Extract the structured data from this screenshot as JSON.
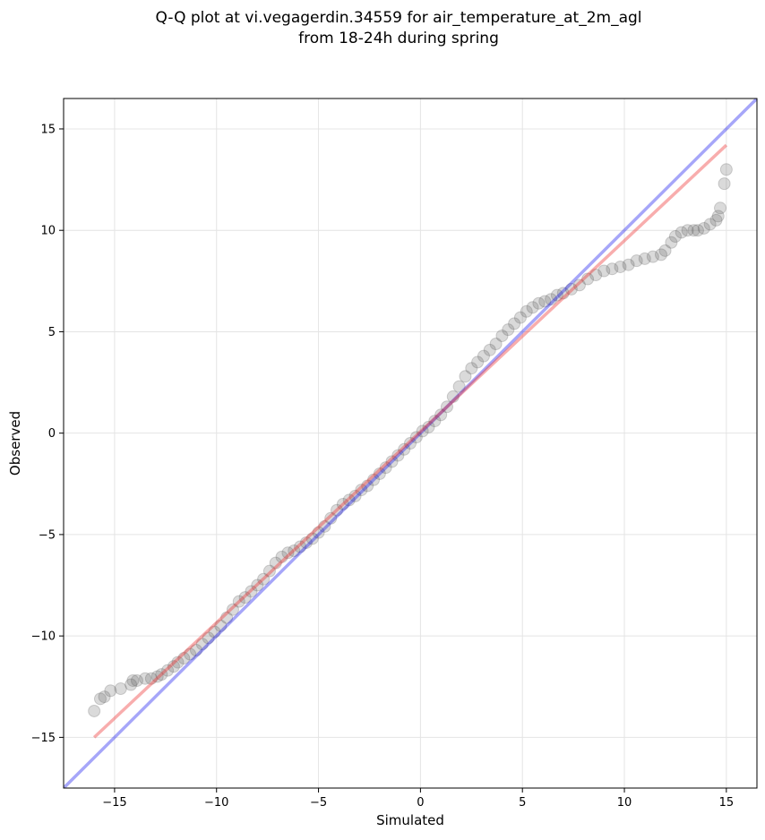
{
  "chart_data": {
    "type": "scatter",
    "title": [
      "Q-Q plot at vi.vegagerdin.34559 for air_temperature_at_2m_agl",
      "from 18-24h during spring"
    ],
    "xlabel": "Simulated",
    "ylabel": "Observed",
    "xlim": [
      -17.5,
      16.5
    ],
    "ylim": [
      -17.5,
      16.5
    ],
    "xticks": [
      -15,
      -10,
      -5,
      0,
      5,
      10,
      15
    ],
    "yticks": [
      -15,
      -10,
      -5,
      0,
      5,
      10,
      15
    ],
    "grid": true,
    "colors": {
      "points": "#555555",
      "identity_line": "#0000ee",
      "fit_line": "#ee3333"
    },
    "series": [
      {
        "kind": "points",
        "x": [
          -16.0,
          -15.7,
          -15.5,
          -15.2,
          -14.7,
          -14.2,
          -14.1,
          -13.9,
          -13.5,
          -13.2,
          -12.9,
          -12.7,
          -12.4,
          -12.1,
          -11.9,
          -11.6,
          -11.3,
          -11.0,
          -10.7,
          -10.4,
          -10.1,
          -9.8,
          -9.5,
          -9.2,
          -8.9,
          -8.6,
          -8.3,
          -8.0,
          -7.7,
          -7.4,
          -7.1,
          -6.8,
          -6.5,
          -6.2,
          -5.9,
          -5.6,
          -5.3,
          -5.0,
          -4.7,
          -4.4,
          -4.1,
          -3.8,
          -3.5,
          -3.2,
          -2.9,
          -2.6,
          -2.3,
          -2.0,
          -1.7,
          -1.4,
          -1.1,
          -0.8,
          -0.5,
          -0.2,
          0.1,
          0.4,
          0.7,
          1.0,
          1.3,
          1.6,
          1.9,
          2.2,
          2.5,
          2.8,
          3.1,
          3.4,
          3.7,
          4.0,
          4.3,
          4.6,
          4.9,
          5.2,
          5.5,
          5.8,
          6.1,
          6.4,
          6.7,
          7.0,
          7.4,
          7.8,
          8.2,
          8.6,
          9.0,
          9.4,
          9.8,
          10.2,
          10.6,
          11.0,
          11.4,
          11.8,
          12.0,
          12.3,
          12.5,
          12.8,
          13.1,
          13.4,
          13.6,
          13.9,
          14.2,
          14.5,
          14.6,
          14.7,
          14.9,
          15.0
        ],
        "y": [
          -13.7,
          -13.1,
          -13.0,
          -12.7,
          -12.6,
          -12.4,
          -12.2,
          -12.2,
          -12.1,
          -12.1,
          -12.0,
          -11.9,
          -11.7,
          -11.5,
          -11.3,
          -11.1,
          -10.9,
          -10.7,
          -10.4,
          -10.1,
          -9.8,
          -9.5,
          -9.1,
          -8.7,
          -8.3,
          -8.1,
          -7.8,
          -7.5,
          -7.2,
          -6.8,
          -6.4,
          -6.1,
          -5.9,
          -5.8,
          -5.6,
          -5.4,
          -5.2,
          -4.9,
          -4.6,
          -4.2,
          -3.8,
          -3.5,
          -3.3,
          -3.1,
          -2.8,
          -2.6,
          -2.3,
          -2.0,
          -1.7,
          -1.4,
          -1.1,
          -0.8,
          -0.5,
          -0.2,
          0.1,
          0.3,
          0.6,
          0.9,
          1.3,
          1.8,
          2.3,
          2.8,
          3.2,
          3.5,
          3.8,
          4.1,
          4.4,
          4.8,
          5.1,
          5.4,
          5.7,
          6.0,
          6.2,
          6.4,
          6.5,
          6.6,
          6.8,
          6.9,
          7.1,
          7.3,
          7.6,
          7.8,
          8.0,
          8.1,
          8.2,
          8.3,
          8.5,
          8.6,
          8.7,
          8.8,
          9.0,
          9.4,
          9.7,
          9.9,
          10.0,
          10.0,
          10.0,
          10.1,
          10.3,
          10.5,
          10.7,
          11.1,
          12.3,
          13.0
        ]
      },
      {
        "kind": "identity_line",
        "x": [
          -17.5,
          16.5
        ],
        "y": [
          -17.5,
          16.5
        ]
      },
      {
        "kind": "fit_line",
        "x": [
          -16.0,
          15.0
        ],
        "y": [
          -15.0,
          14.2
        ]
      }
    ]
  }
}
